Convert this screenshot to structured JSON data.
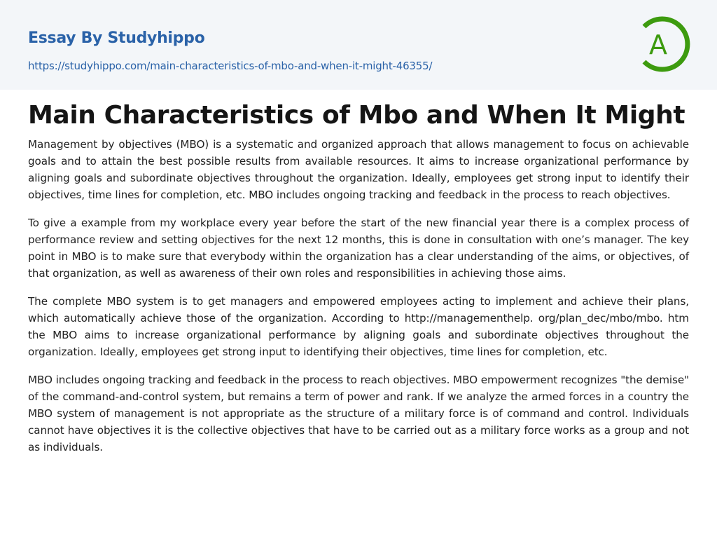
{
  "header": {
    "brand": "Essay By Studyhippo",
    "url": "https://studyhippo.com/main-characteristics-of-mbo-and-when-it-might-46355/",
    "logo_letter": "A",
    "logo_color": "#3d9b0f"
  },
  "article": {
    "title": "Main Characteristics of Mbo and When It Might",
    "paragraphs": [
      "Management by objectives (MBO) is a systematic and organized approach that allows management to focus on achievable goals and to attain the best possible results from available resources. It aims to increase organizational performance by aligning goals and subordinate objectives throughout the organization. Ideally, employees get strong input to identify their objectives, time lines for completion, etc. MBO includes ongoing tracking and feedback in the process to reach objectives.",
      "To give a example from my workplace every year before the start of the new financial year there is a complex process of performance review and setting objectives for the next 12 months, this is done in consultation with one’s manager. The key point in MBO is to make sure that everybody within the organization has a clear understanding of the aims, or objectives, of that organization, as well as awareness of their own roles and responsibilities in achieving those aims.",
      "The complete MBO system is to get managers and empowered employees acting to implement and achieve their plans, which automatically achieve those of the organization. According to http://managementhelp. org/plan_dec/mbo/mbo. htm the MBO aims to increase organizational performance by aligning goals and subordinate objectives throughout the organization. Ideally, employees get strong input to identifying their objectives, time lines for completion, etc.",
      "MBO includes ongoing tracking and feedback in the process to reach objectives. MBO empowerment recognizes \"the demise\" of the command-and-control system, but remains a term of power and rank. If we analyze the armed forces in a country the MBO system of management is not appropriate as the structure of a military force is of command and control. Individuals cannot have objectives it is the collective objectives that have to be carried out as a military force works as a group and not as individuals."
    ]
  }
}
